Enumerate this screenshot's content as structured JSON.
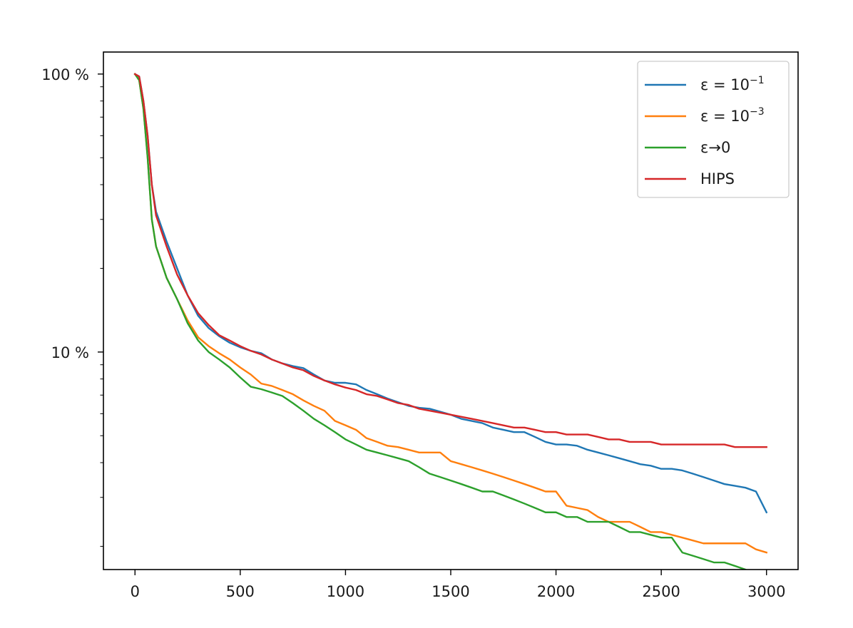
{
  "chart_data": {
    "type": "line",
    "title": "",
    "xlabel": "",
    "ylabel": "",
    "xlim": [
      -150,
      3150
    ],
    "ylim": [
      0.0165,
      1.2
    ],
    "yscale": "log",
    "grid": false,
    "legend_position": "top-right",
    "x_ticks": [
      {
        "value": 0,
        "label": "0"
      },
      {
        "value": 500,
        "label": "500"
      },
      {
        "value": 1000,
        "label": "1000"
      },
      {
        "value": 1500,
        "label": "1500"
      },
      {
        "value": 2000,
        "label": "2000"
      },
      {
        "value": 2500,
        "label": "2500"
      },
      {
        "value": 3000,
        "label": "3000"
      }
    ],
    "y_ticks": [
      {
        "value": 1.0,
        "label": "100 %"
      },
      {
        "value": 0.1,
        "label": "10 %"
      }
    ],
    "series": [
      {
        "name": "ε = 10⁻¹",
        "legend_base": "ε = 10",
        "legend_exp": "−1",
        "color": "#1f77b4",
        "x": [
          0,
          20,
          40,
          60,
          80,
          100,
          150,
          200,
          250,
          300,
          350,
          400,
          450,
          500,
          550,
          600,
          650,
          700,
          750,
          800,
          850,
          900,
          950,
          1000,
          1050,
          1100,
          1150,
          1200,
          1250,
          1300,
          1350,
          1400,
          1450,
          1500,
          1550,
          1600,
          1650,
          1700,
          1750,
          1800,
          1850,
          1900,
          1950,
          2000,
          2050,
          2100,
          2150,
          2200,
          2250,
          2300,
          2350,
          2400,
          2450,
          2500,
          2550,
          2600,
          2650,
          2700,
          2750,
          2800,
          2850,
          2900,
          2950,
          3000
        ],
        "y": [
          1.0,
          0.98,
          0.8,
          0.6,
          0.4,
          0.32,
          0.25,
          0.2,
          0.16,
          0.135,
          0.122,
          0.114,
          0.108,
          0.104,
          0.101,
          0.099,
          0.094,
          0.091,
          0.089,
          0.0875,
          0.083,
          0.079,
          0.0775,
          0.0775,
          0.0765,
          0.073,
          0.0705,
          0.068,
          0.066,
          0.064,
          0.063,
          0.0625,
          0.061,
          0.0595,
          0.0575,
          0.0565,
          0.0555,
          0.0535,
          0.0525,
          0.0515,
          0.0515,
          0.0495,
          0.0475,
          0.0465,
          0.0465,
          0.046,
          0.0445,
          0.0435,
          0.0425,
          0.0415,
          0.0405,
          0.0395,
          0.039,
          0.038,
          0.038,
          0.0375,
          0.0365,
          0.0355,
          0.0345,
          0.0335,
          0.033,
          0.0325,
          0.0315,
          0.0265
        ]
      },
      {
        "name": "ε = 10⁻³",
        "legend_base": "ε = 10",
        "legend_exp": "−3",
        "color": "#ff7f0e",
        "x": [
          0,
          20,
          40,
          60,
          80,
          100,
          150,
          200,
          250,
          300,
          350,
          400,
          450,
          500,
          550,
          600,
          650,
          700,
          750,
          800,
          850,
          900,
          950,
          1000,
          1050,
          1100,
          1150,
          1200,
          1250,
          1300,
          1350,
          1400,
          1450,
          1500,
          1550,
          1600,
          1650,
          1700,
          1750,
          1800,
          1850,
          1900,
          1950,
          2000,
          2050,
          2100,
          2150,
          2200,
          2250,
          2300,
          2350,
          2400,
          2450,
          2500,
          2550,
          2600,
          2650,
          2700,
          2750,
          2800,
          2850,
          2900,
          2950,
          3000
        ],
        "y": [
          1.0,
          0.95,
          0.75,
          0.5,
          0.3,
          0.24,
          0.185,
          0.155,
          0.13,
          0.113,
          0.105,
          0.099,
          0.094,
          0.088,
          0.083,
          0.077,
          0.0755,
          0.073,
          0.0705,
          0.067,
          0.064,
          0.0615,
          0.0565,
          0.0545,
          0.0525,
          0.049,
          0.0475,
          0.046,
          0.0455,
          0.0445,
          0.0435,
          0.0435,
          0.0435,
          0.0405,
          0.0395,
          0.0385,
          0.0375,
          0.0365,
          0.0355,
          0.0345,
          0.0335,
          0.0325,
          0.0315,
          0.0315,
          0.028,
          0.0275,
          0.027,
          0.0255,
          0.0245,
          0.0245,
          0.0245,
          0.0235,
          0.0225,
          0.0225,
          0.022,
          0.0215,
          0.021,
          0.0205,
          0.0205,
          0.0205,
          0.0205,
          0.0205,
          0.0195,
          0.019
        ]
      },
      {
        "name": "ε→0",
        "legend_base": "ε→0",
        "legend_exp": "",
        "color": "#2ca02c",
        "x": [
          0,
          20,
          40,
          60,
          80,
          100,
          150,
          200,
          250,
          300,
          350,
          400,
          450,
          500,
          550,
          600,
          650,
          700,
          750,
          800,
          850,
          900,
          950,
          1000,
          1050,
          1100,
          1150,
          1200,
          1250,
          1300,
          1350,
          1400,
          1450,
          1500,
          1550,
          1600,
          1650,
          1700,
          1750,
          1800,
          1850,
          1900,
          1950,
          2000,
          2050,
          2100,
          2150,
          2200,
          2250,
          2300,
          2350,
          2400,
          2450,
          2500,
          2550,
          2600,
          2650,
          2700,
          2750,
          2800,
          2850,
          2900,
          2950,
          3000
        ],
        "y": [
          1.0,
          0.95,
          0.75,
          0.5,
          0.3,
          0.24,
          0.185,
          0.155,
          0.127,
          0.11,
          0.1,
          0.094,
          0.088,
          0.081,
          0.075,
          0.0735,
          0.0715,
          0.0695,
          0.0655,
          0.0615,
          0.0575,
          0.0545,
          0.0515,
          0.0485,
          0.0465,
          0.0445,
          0.0435,
          0.0425,
          0.0415,
          0.0405,
          0.0385,
          0.0365,
          0.0355,
          0.0345,
          0.0335,
          0.0325,
          0.0315,
          0.0315,
          0.0305,
          0.0295,
          0.0285,
          0.0275,
          0.0265,
          0.0265,
          0.0255,
          0.0255,
          0.0245,
          0.0245,
          0.0245,
          0.0235,
          0.0225,
          0.0225,
          0.022,
          0.0215,
          0.0215,
          0.019,
          0.0185,
          0.018,
          0.0175,
          0.0175,
          0.017,
          0.0165,
          0.0158,
          0.0158
        ]
      },
      {
        "name": "HIPS",
        "legend_base": "HIPS",
        "legend_exp": "",
        "color": "#d62728",
        "x": [
          0,
          20,
          40,
          60,
          80,
          100,
          150,
          200,
          250,
          300,
          350,
          400,
          450,
          500,
          550,
          600,
          650,
          700,
          750,
          800,
          850,
          900,
          950,
          1000,
          1050,
          1100,
          1150,
          1200,
          1250,
          1300,
          1350,
          1400,
          1450,
          1500,
          1550,
          1600,
          1650,
          1700,
          1750,
          1800,
          1850,
          1900,
          1950,
          2000,
          2050,
          2100,
          2150,
          2200,
          2250,
          2300,
          2350,
          2400,
          2450,
          2500,
          2550,
          2600,
          2650,
          2700,
          2750,
          2800,
          2850,
          2900,
          2950,
          3000
        ],
        "y": [
          1.0,
          0.98,
          0.8,
          0.6,
          0.4,
          0.31,
          0.24,
          0.19,
          0.16,
          0.138,
          0.125,
          0.115,
          0.11,
          0.105,
          0.101,
          0.098,
          0.094,
          0.091,
          0.088,
          0.086,
          0.082,
          0.079,
          0.0765,
          0.0745,
          0.073,
          0.0705,
          0.0695,
          0.0675,
          0.0655,
          0.0645,
          0.0625,
          0.0615,
          0.0605,
          0.0595,
          0.0585,
          0.0575,
          0.0565,
          0.0555,
          0.0545,
          0.0535,
          0.0535,
          0.0525,
          0.0515,
          0.0515,
          0.0505,
          0.0505,
          0.0505,
          0.0495,
          0.0485,
          0.0485,
          0.0475,
          0.0475,
          0.0475,
          0.0465,
          0.0465,
          0.0465,
          0.0465,
          0.0465,
          0.0465,
          0.0465,
          0.0455,
          0.0455,
          0.0455,
          0.0455
        ]
      }
    ]
  }
}
